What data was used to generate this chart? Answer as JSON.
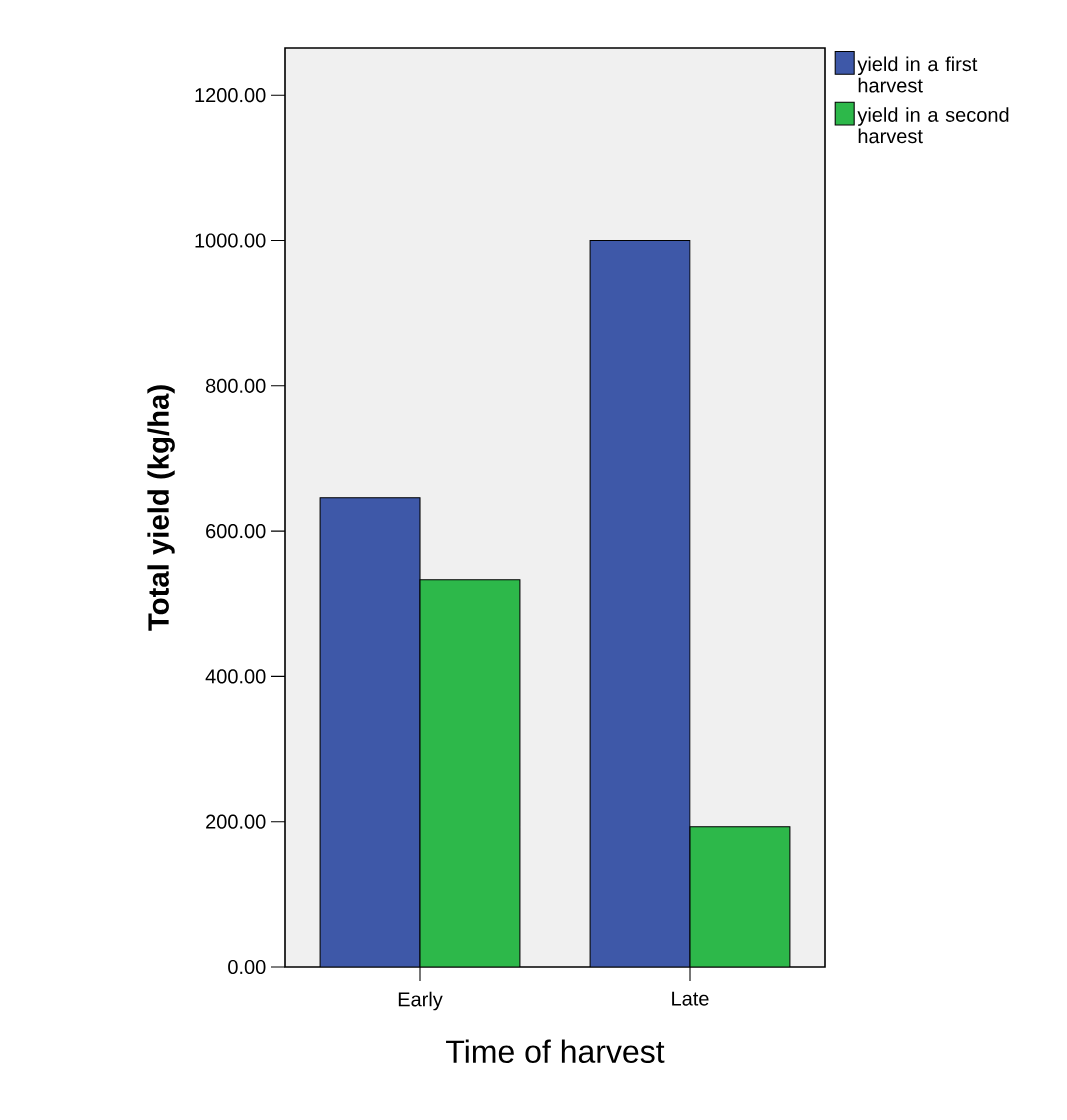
{
  "chart_data": {
    "type": "bar",
    "xlabel": "Time of harvest",
    "ylabel": "Total yield (kg/ha)",
    "categories": [
      "Early",
      "Late"
    ],
    "series": [
      {
        "name": "yield in a first harvest",
        "color": "#3e58a8",
        "values": [
          646,
          1000
        ]
      },
      {
        "name": "yield in a second harvest",
        "color": "#2db84a",
        "values": [
          533,
          193
        ]
      }
    ],
    "ylim": [
      0,
      1265
    ],
    "yticks": [
      {
        "value": 0,
        "label": "0.00"
      },
      {
        "value": 200,
        "label": "200.00"
      },
      {
        "value": 400,
        "label": "400.00"
      },
      {
        "value": 600,
        "label": "600.00"
      },
      {
        "value": 800,
        "label": "800.00"
      },
      {
        "value": 1000,
        "label": "1000.00"
      },
      {
        "value": 1200,
        "label": "1200.00"
      }
    ],
    "legend": "top right",
    "grid": false
  }
}
